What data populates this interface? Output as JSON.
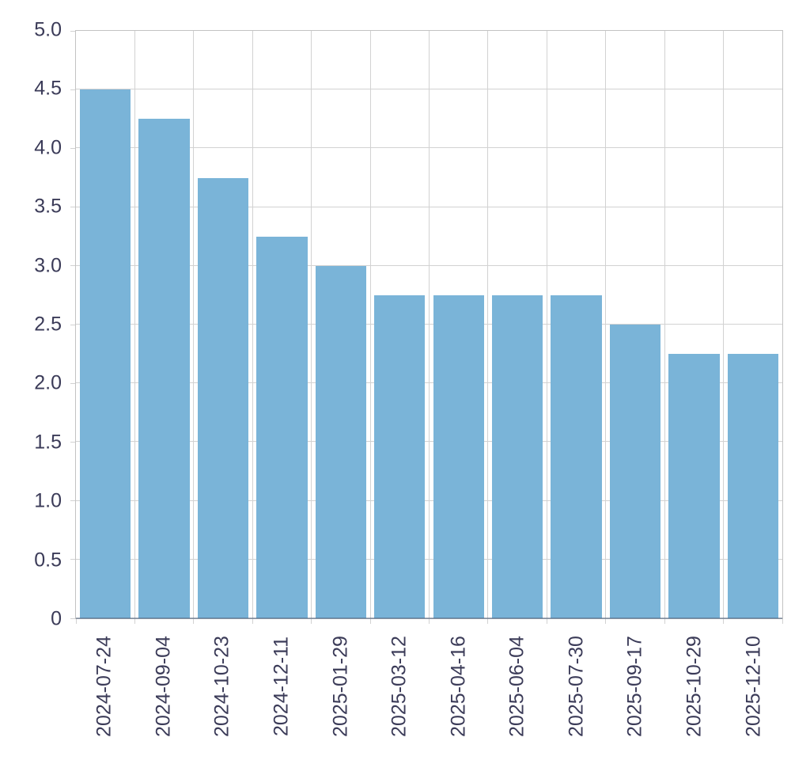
{
  "chart_data": {
    "type": "bar",
    "title": "",
    "xlabel": "",
    "ylabel": "",
    "categories": [
      "2024-07-24",
      "2024-09-04",
      "2024-10-23",
      "2024-12-11",
      "2025-01-29",
      "2025-03-12",
      "2025-04-16",
      "2025-06-04",
      "2025-07-30",
      "2025-09-17",
      "2025-10-29",
      "2025-12-10"
    ],
    "values": [
      4.5,
      4.25,
      3.75,
      3.25,
      3.0,
      2.75,
      2.75,
      2.75,
      2.75,
      2.5,
      2.25,
      2.25
    ],
    "ylim": [
      0,
      5
    ],
    "yticks": [
      0,
      0.5,
      1.0,
      1.5,
      2.0,
      2.5,
      3.0,
      3.5,
      4.0,
      4.5,
      5.0
    ],
    "ytick_labels": [
      "0",
      "0.5",
      "1.0",
      "1.5",
      "2.0",
      "2.5",
      "3.0",
      "3.5",
      "4.0",
      "4.5",
      "5.0"
    ],
    "grid": true,
    "legend": false,
    "colors": {
      "bar": "#7ab4d8",
      "label": "#3b3b58",
      "grid": "#d2d2d2",
      "frame": "#c3c3c3",
      "baseline": "rgba(73,93,122,0.5)",
      "background": "#ffffff"
    }
  }
}
